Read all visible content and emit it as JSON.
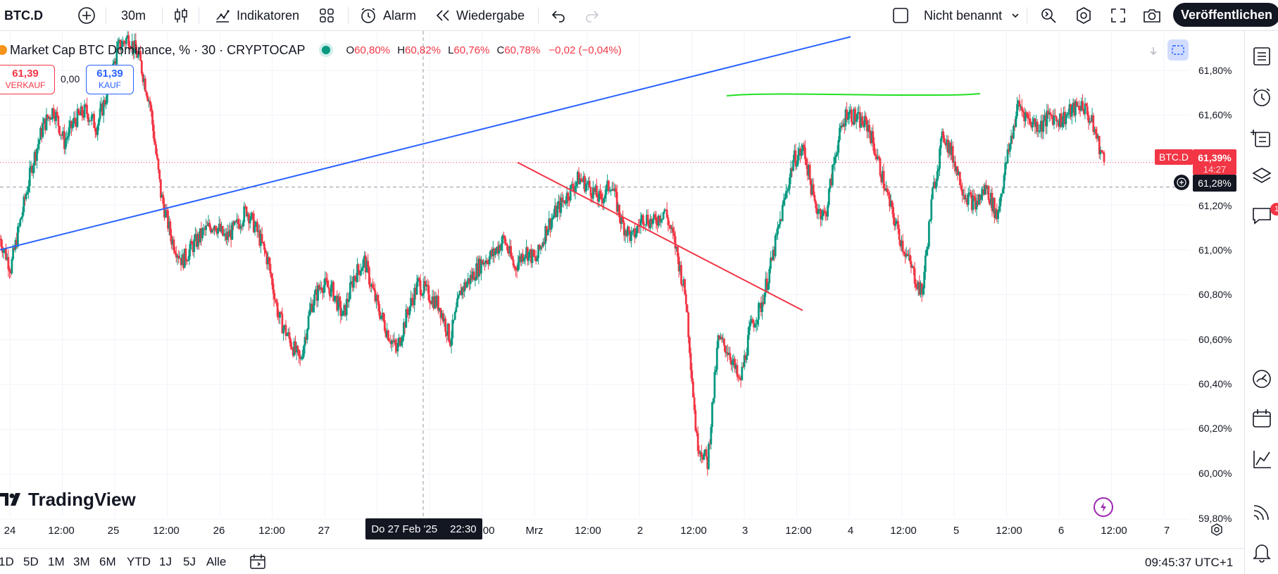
{
  "toolbar": {
    "symbol": "BTC.D",
    "interval": "30m",
    "indicators_label": "Indikatoren",
    "alarm_label": "Alarm",
    "replay_label": "Wiedergabe",
    "layout_name": "Nicht benannt",
    "publish_label": "Veröffentlichen"
  },
  "legend": {
    "title": "Market Cap BTC Dominance, % · 30 · CRYPTOCAP",
    "o_key": "O",
    "o_val": "60,80%",
    "h_key": "H",
    "h_val": "60,82%",
    "l_key": "L",
    "l_val": "60,76%",
    "c_key": "C",
    "c_val": "60,78%",
    "change": "−0,02 (−0,04%)"
  },
  "trade": {
    "sell_price": "61,39",
    "sell_label": "VERKAUF",
    "spread": "0,00",
    "buy_price": "61,39",
    "buy_label": "KAUF"
  },
  "price_axis": {
    "ticks": [
      "61,80%",
      "61,60%",
      "61,20%",
      "61,00%",
      "60,80%",
      "60,60%",
      "60,40%",
      "60,20%",
      "60,00%",
      "59,80%"
    ],
    "last_symbol": "BTC.D",
    "last_price": "61,39%",
    "countdown": "14:27",
    "crosshair_price": "61,28%"
  },
  "time_axis": {
    "labels": [
      "24",
      "12:00",
      "25",
      "12:00",
      "26",
      "12:00",
      "27",
      ":00",
      "Mrz",
      "12:00",
      "2",
      "12:00",
      "3",
      "12:00",
      "4",
      "12:00",
      "5",
      "12:00",
      "6",
      "12:00",
      "7"
    ],
    "crosshair_date": "Do 27 Feb '25",
    "crosshair_time": "22:30"
  },
  "branding": {
    "logo_text": "TradingView"
  },
  "bottom": {
    "ranges": [
      "1D",
      "5D",
      "1M",
      "3M",
      "6M",
      "YTD",
      "1J",
      "5J",
      "Alle"
    ],
    "clock": "09:45:37 UTC+1"
  },
  "right_sidebar": {
    "notification_count": "1"
  },
  "colors": {
    "up": "#089981",
    "down": "#f23645",
    "trendline_blue": "#2962ff",
    "trendline_red": "#f23645",
    "resistance_green": "#22e022",
    "accent_dark": "#131722"
  },
  "chart_data": {
    "type": "candlestick",
    "series": [
      {
        "name": "BTC.D",
        "close_path": [
          61.05,
          60.92,
          61.15,
          61.38,
          61.55,
          61.63,
          61.48,
          61.58,
          61.62,
          61.55,
          61.7,
          61.9,
          61.95,
          61.85,
          61.65,
          61.25,
          61.05,
          60.95,
          61.02,
          61.08,
          61.12,
          61.05,
          61.1,
          61.18,
          61.08,
          60.95,
          60.7,
          60.6,
          60.5,
          60.75,
          60.85,
          60.82,
          60.7,
          60.88,
          60.95,
          60.78,
          60.65,
          60.55,
          60.72,
          60.85,
          60.8,
          60.75,
          60.6,
          60.82,
          60.88,
          60.95,
          60.98,
          61.05,
          60.92,
          61.0,
          60.95,
          61.1,
          61.18,
          61.25,
          61.32,
          61.28,
          61.22,
          61.3,
          61.12,
          61.05,
          61.15,
          61.12,
          61.18,
          61.02,
          60.78,
          60.15,
          60.05,
          60.6,
          60.55,
          60.4,
          60.65,
          60.75,
          60.95,
          61.18,
          61.4,
          61.45,
          61.2,
          61.15,
          61.45,
          61.62,
          61.58,
          61.55,
          61.38,
          61.2,
          61.05,
          60.92,
          60.8,
          61.25,
          61.52,
          61.4,
          61.25,
          61.2,
          61.28,
          61.15,
          61.42,
          61.65,
          61.58,
          61.55,
          61.6,
          61.58,
          61.62,
          61.65,
          61.55,
          61.39
        ]
      }
    ],
    "trendlines": [
      {
        "name": "ascending-blue",
        "from": [
          0,
          61.0
        ],
        "to": [
          1208,
          61.95
        ]
      },
      {
        "name": "descending-red",
        "from": [
          735,
          61.39
        ],
        "to": [
          1140,
          60.73
        ]
      },
      {
        "name": "resistance-green",
        "level": 61.69
      }
    ],
    "ylim": [
      59.75,
      61.92
    ],
    "grid": true
  }
}
